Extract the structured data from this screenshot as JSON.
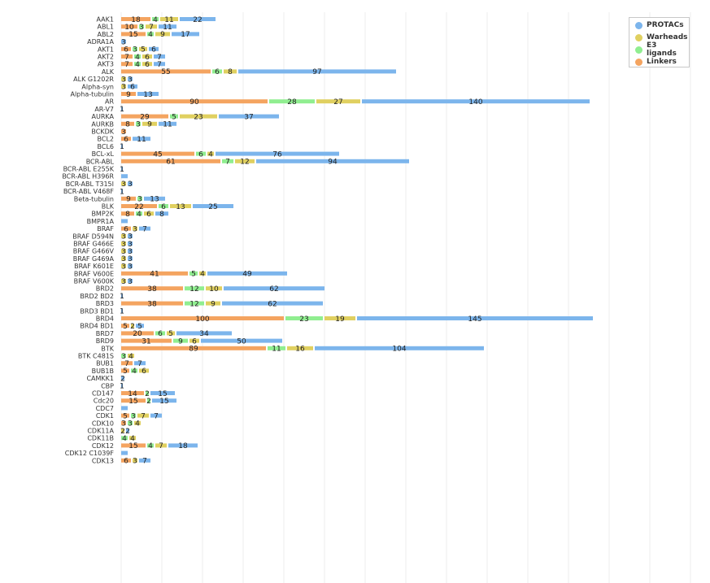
{
  "chart_data": {
    "type": "bar",
    "orientation": "horizontal",
    "stacked": true,
    "grid": true,
    "legend": "top-right",
    "series": [
      {
        "name": "Linkers",
        "color": "#f4a460"
      },
      {
        "name": "E3 ligands",
        "color": "#90ee90"
      },
      {
        "name": "Warheads",
        "color": "#e0d060"
      },
      {
        "name": "PROTACs",
        "color": "#7cb5ec"
      }
    ],
    "rows": [
      {
        "category": "AAK1",
        "values": [
          18,
          4,
          11,
          22
        ]
      },
      {
        "category": "ABL1",
        "values": [
          10,
          3,
          7,
          11
        ]
      },
      {
        "category": "ABL2",
        "values": [
          15,
          4,
          9,
          17
        ]
      },
      {
        "category": "ADRA1A",
        "values": [
          0,
          0,
          0,
          3
        ]
      },
      {
        "category": "AKT1",
        "values": [
          6,
          3,
          5,
          6
        ]
      },
      {
        "category": "AKT2",
        "values": [
          7,
          4,
          6,
          7
        ]
      },
      {
        "category": "AKT3",
        "values": [
          7,
          4,
          6,
          7
        ]
      },
      {
        "category": "ALK",
        "values": [
          55,
          6,
          8,
          97
        ]
      },
      {
        "category": "ALK G1202R",
        "values": [
          0,
          0,
          3,
          3
        ]
      },
      {
        "category": "Alpha-syn",
        "values": [
          0,
          0,
          3,
          6
        ]
      },
      {
        "category": "Alpha-tubulin",
        "values": [
          9,
          0,
          0,
          13
        ]
      },
      {
        "category": "AR",
        "values": [
          90,
          28,
          27,
          140
        ]
      },
      {
        "category": "AR-V7",
        "values": [
          0,
          0,
          0,
          1
        ]
      },
      {
        "category": "AURKA",
        "values": [
          29,
          5,
          23,
          37
        ]
      },
      {
        "category": "AURKB",
        "values": [
          8,
          3,
          9,
          11
        ]
      },
      {
        "category": "BCKDK",
        "values": [
          3,
          0,
          0,
          0
        ]
      },
      {
        "category": "BCL2",
        "values": [
          6,
          0,
          0,
          11
        ]
      },
      {
        "category": "BCL6",
        "values": [
          0,
          0,
          0,
          1
        ]
      },
      {
        "category": "BCL-xL",
        "values": [
          45,
          6,
          4,
          76
        ]
      },
      {
        "category": "BCR-ABL",
        "values": [
          61,
          7,
          12,
          94
        ]
      },
      {
        "category": "BCR-ABL E255K",
        "values": [
          0,
          0,
          0,
          1
        ]
      },
      {
        "category": "BCR-ABL H396R",
        "values": [
          0,
          0,
          0,
          0
        ]
      },
      {
        "category": "BCR-ABL T315I",
        "values": [
          0,
          0,
          3,
          3
        ]
      },
      {
        "category": "BCR-ABL V468F",
        "values": [
          0,
          0,
          0,
          1
        ]
      },
      {
        "category": "Beta-tubulin",
        "values": [
          9,
          3,
          0,
          13
        ]
      },
      {
        "category": "BLK",
        "values": [
          22,
          6,
          13,
          25
        ]
      },
      {
        "category": "BMP2K",
        "values": [
          8,
          4,
          6,
          8
        ]
      },
      {
        "category": "BMPR1A",
        "values": [
          0,
          0,
          0,
          0
        ]
      },
      {
        "category": "BRAF",
        "values": [
          6,
          0,
          3,
          7
        ]
      },
      {
        "category": "BRAF D594N",
        "values": [
          0,
          0,
          3,
          3
        ]
      },
      {
        "category": "BRAF G466E",
        "values": [
          0,
          0,
          3,
          3
        ]
      },
      {
        "category": "BRAF G466V",
        "values": [
          0,
          0,
          3,
          3
        ]
      },
      {
        "category": "BRAF G469A",
        "values": [
          0,
          0,
          3,
          3
        ]
      },
      {
        "category": "BRAF K601E",
        "values": [
          0,
          0,
          3,
          3
        ]
      },
      {
        "category": "BRAF V600E",
        "values": [
          41,
          5,
          4,
          49
        ]
      },
      {
        "category": "BRAF V600K",
        "values": [
          0,
          0,
          3,
          3
        ]
      },
      {
        "category": "BRD2",
        "values": [
          38,
          12,
          10,
          62
        ]
      },
      {
        "category": "BRD2 BD2",
        "values": [
          0,
          0,
          0,
          1
        ]
      },
      {
        "category": "BRD3",
        "values": [
          38,
          12,
          9,
          62
        ]
      },
      {
        "category": "BRD3 BD1",
        "values": [
          0,
          0,
          0,
          1
        ]
      },
      {
        "category": "BRD4",
        "values": [
          100,
          23,
          19,
          145
        ]
      },
      {
        "category": "BRD4 BD1",
        "values": [
          5,
          0,
          2,
          5
        ]
      },
      {
        "category": "BRD7",
        "values": [
          20,
          6,
          5,
          34
        ]
      },
      {
        "category": "BRD9",
        "values": [
          31,
          9,
          6,
          50
        ]
      },
      {
        "category": "BTK",
        "values": [
          89,
          11,
          16,
          104
        ]
      },
      {
        "category": "BTK C481S",
        "values": [
          0,
          3,
          4,
          0
        ]
      },
      {
        "category": "BUB1",
        "values": [
          7,
          0,
          0,
          7
        ]
      },
      {
        "category": "BUB1B",
        "values": [
          5,
          4,
          6,
          0
        ]
      },
      {
        "category": "CAMKK1",
        "values": [
          0,
          0,
          0,
          2
        ]
      },
      {
        "category": "CBP",
        "values": [
          0,
          0,
          0,
          1
        ]
      },
      {
        "category": "CD147",
        "values": [
          14,
          2,
          0,
          15
        ]
      },
      {
        "category": "Cdc20",
        "values": [
          15,
          2,
          0,
          15
        ]
      },
      {
        "category": "CDC7",
        "values": [
          0,
          0,
          0,
          0
        ]
      },
      {
        "category": "CDK1",
        "values": [
          5,
          3,
          7,
          7
        ]
      },
      {
        "category": "CDK10",
        "values": [
          3,
          3,
          4,
          0
        ]
      },
      {
        "category": "CDK11A",
        "values": [
          0,
          0,
          2,
          2
        ]
      },
      {
        "category": "CDK11B",
        "values": [
          0,
          4,
          4,
          0
        ]
      },
      {
        "category": "CDK12",
        "values": [
          15,
          4,
          7,
          18
        ]
      },
      {
        "category": "CDK12 C1039F",
        "values": [
          0,
          0,
          0,
          0
        ]
      },
      {
        "category": "CDK13",
        "values": [
          6,
          0,
          3,
          7
        ]
      }
    ]
  }
}
